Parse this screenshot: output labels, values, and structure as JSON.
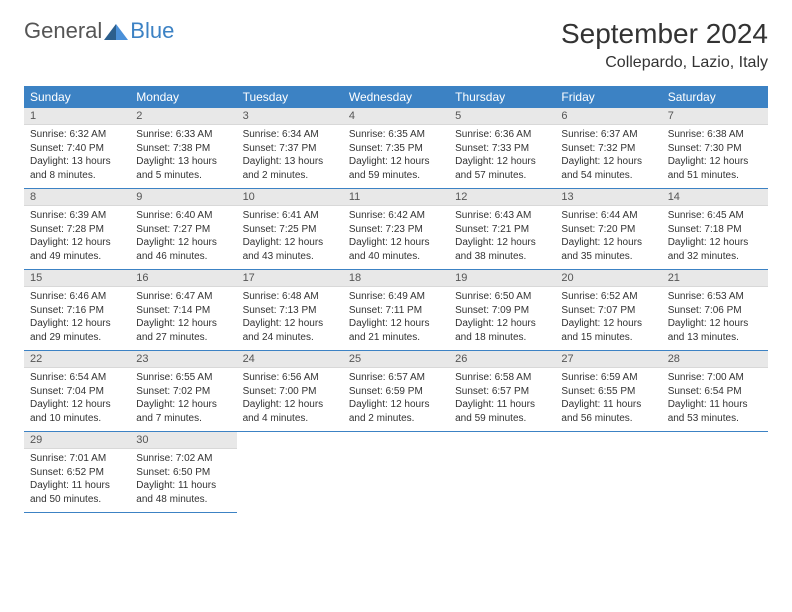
{
  "logo": {
    "text_general": "General",
    "text_blue": "Blue"
  },
  "title": "September 2024",
  "location": "Collepardo, Lazio, Italy",
  "colors": {
    "header_bg": "#3c82c4",
    "daynum_bg": "#e8e8e8",
    "border": "#3c82c4"
  },
  "day_headers": [
    "Sunday",
    "Monday",
    "Tuesday",
    "Wednesday",
    "Thursday",
    "Friday",
    "Saturday"
  ],
  "weeks": [
    [
      {
        "n": "1",
        "sunrise": "6:32 AM",
        "sunset": "7:40 PM",
        "daylight": "13 hours and 8 minutes."
      },
      {
        "n": "2",
        "sunrise": "6:33 AM",
        "sunset": "7:38 PM",
        "daylight": "13 hours and 5 minutes."
      },
      {
        "n": "3",
        "sunrise": "6:34 AM",
        "sunset": "7:37 PM",
        "daylight": "13 hours and 2 minutes."
      },
      {
        "n": "4",
        "sunrise": "6:35 AM",
        "sunset": "7:35 PM",
        "daylight": "12 hours and 59 minutes."
      },
      {
        "n": "5",
        "sunrise": "6:36 AM",
        "sunset": "7:33 PM",
        "daylight": "12 hours and 57 minutes."
      },
      {
        "n": "6",
        "sunrise": "6:37 AM",
        "sunset": "7:32 PM",
        "daylight": "12 hours and 54 minutes."
      },
      {
        "n": "7",
        "sunrise": "6:38 AM",
        "sunset": "7:30 PM",
        "daylight": "12 hours and 51 minutes."
      }
    ],
    [
      {
        "n": "8",
        "sunrise": "6:39 AM",
        "sunset": "7:28 PM",
        "daylight": "12 hours and 49 minutes."
      },
      {
        "n": "9",
        "sunrise": "6:40 AM",
        "sunset": "7:27 PM",
        "daylight": "12 hours and 46 minutes."
      },
      {
        "n": "10",
        "sunrise": "6:41 AM",
        "sunset": "7:25 PM",
        "daylight": "12 hours and 43 minutes."
      },
      {
        "n": "11",
        "sunrise": "6:42 AM",
        "sunset": "7:23 PM",
        "daylight": "12 hours and 40 minutes."
      },
      {
        "n": "12",
        "sunrise": "6:43 AM",
        "sunset": "7:21 PM",
        "daylight": "12 hours and 38 minutes."
      },
      {
        "n": "13",
        "sunrise": "6:44 AM",
        "sunset": "7:20 PM",
        "daylight": "12 hours and 35 minutes."
      },
      {
        "n": "14",
        "sunrise": "6:45 AM",
        "sunset": "7:18 PM",
        "daylight": "12 hours and 32 minutes."
      }
    ],
    [
      {
        "n": "15",
        "sunrise": "6:46 AM",
        "sunset": "7:16 PM",
        "daylight": "12 hours and 29 minutes."
      },
      {
        "n": "16",
        "sunrise": "6:47 AM",
        "sunset": "7:14 PM",
        "daylight": "12 hours and 27 minutes."
      },
      {
        "n": "17",
        "sunrise": "6:48 AM",
        "sunset": "7:13 PM",
        "daylight": "12 hours and 24 minutes."
      },
      {
        "n": "18",
        "sunrise": "6:49 AM",
        "sunset": "7:11 PM",
        "daylight": "12 hours and 21 minutes."
      },
      {
        "n": "19",
        "sunrise": "6:50 AM",
        "sunset": "7:09 PM",
        "daylight": "12 hours and 18 minutes."
      },
      {
        "n": "20",
        "sunrise": "6:52 AM",
        "sunset": "7:07 PM",
        "daylight": "12 hours and 15 minutes."
      },
      {
        "n": "21",
        "sunrise": "6:53 AM",
        "sunset": "7:06 PM",
        "daylight": "12 hours and 13 minutes."
      }
    ],
    [
      {
        "n": "22",
        "sunrise": "6:54 AM",
        "sunset": "7:04 PM",
        "daylight": "12 hours and 10 minutes."
      },
      {
        "n": "23",
        "sunrise": "6:55 AM",
        "sunset": "7:02 PM",
        "daylight": "12 hours and 7 minutes."
      },
      {
        "n": "24",
        "sunrise": "6:56 AM",
        "sunset": "7:00 PM",
        "daylight": "12 hours and 4 minutes."
      },
      {
        "n": "25",
        "sunrise": "6:57 AM",
        "sunset": "6:59 PM",
        "daylight": "12 hours and 2 minutes."
      },
      {
        "n": "26",
        "sunrise": "6:58 AM",
        "sunset": "6:57 PM",
        "daylight": "11 hours and 59 minutes."
      },
      {
        "n": "27",
        "sunrise": "6:59 AM",
        "sunset": "6:55 PM",
        "daylight": "11 hours and 56 minutes."
      },
      {
        "n": "28",
        "sunrise": "7:00 AM",
        "sunset": "6:54 PM",
        "daylight": "11 hours and 53 minutes."
      }
    ],
    [
      {
        "n": "29",
        "sunrise": "7:01 AM",
        "sunset": "6:52 PM",
        "daylight": "11 hours and 50 minutes."
      },
      {
        "n": "30",
        "sunrise": "7:02 AM",
        "sunset": "6:50 PM",
        "daylight": "11 hours and 48 minutes."
      },
      null,
      null,
      null,
      null,
      null
    ]
  ],
  "labels": {
    "sunrise": "Sunrise: ",
    "sunset": "Sunset: ",
    "daylight": "Daylight: "
  }
}
